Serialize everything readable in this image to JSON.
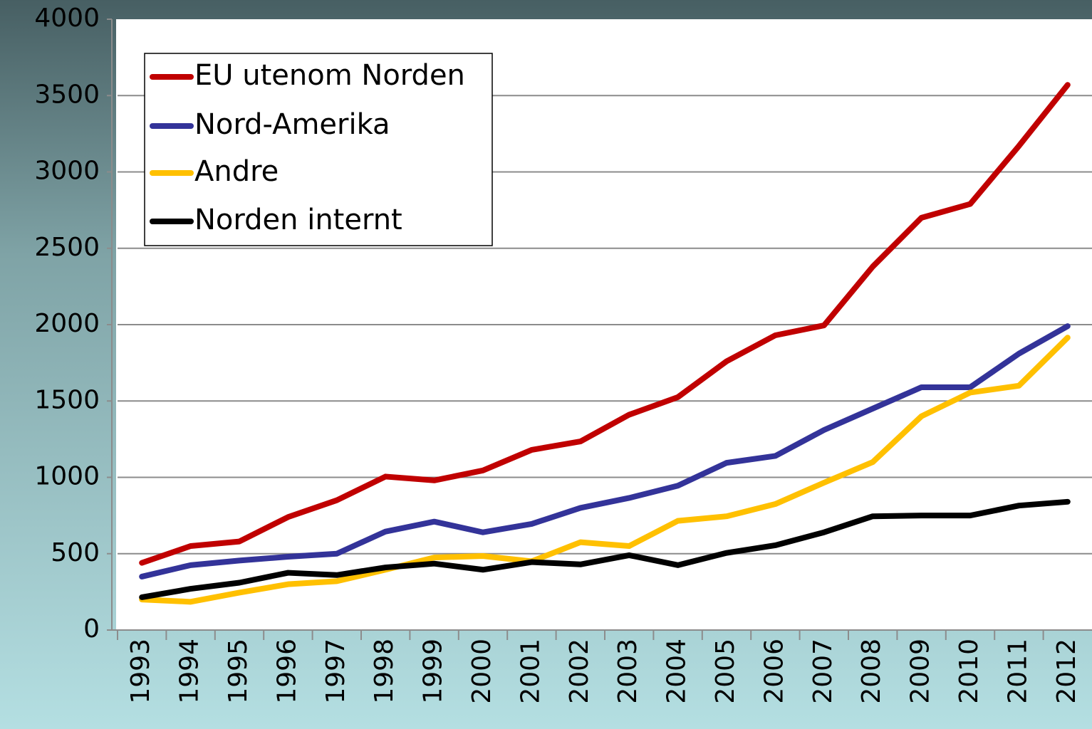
{
  "chart_data": {
    "type": "line",
    "categories": [
      "1993",
      "1994",
      "1995",
      "1996",
      "1997",
      "1998",
      "1999",
      "2000",
      "2001",
      "2002",
      "2003",
      "2004",
      "2005",
      "2006",
      "2007",
      "2008",
      "2009",
      "2010",
      "2011",
      "2012"
    ],
    "series": [
      {
        "name": "EU utenom Norden",
        "color": "#c00000",
        "values": [
          440,
          550,
          580,
          740,
          850,
          1005,
          980,
          1045,
          1180,
          1235,
          1410,
          1525,
          1760,
          1930,
          1995,
          2380,
          2700,
          2790,
          3170,
          3570
        ]
      },
      {
        "name": "Nord-Amerika",
        "color": "#333399",
        "values": [
          350,
          425,
          455,
          480,
          500,
          645,
          710,
          640,
          695,
          800,
          865,
          945,
          1095,
          1140,
          1310,
          1450,
          1590,
          1590,
          1810,
          1990
        ]
      },
      {
        "name": "Andre",
        "color": "#ffc000",
        "values": [
          200,
          185,
          245,
          300,
          320,
          395,
          475,
          485,
          450,
          575,
          550,
          715,
          745,
          825,
          965,
          1100,
          1400,
          1555,
          1600,
          1915
        ]
      },
      {
        "name": "Norden internt",
        "color": "#000000",
        "values": [
          215,
          270,
          310,
          375,
          360,
          410,
          435,
          395,
          445,
          430,
          490,
          425,
          505,
          555,
          640,
          745,
          750,
          750,
          815,
          840
        ]
      }
    ],
    "ylim": [
      0,
      4000
    ],
    "yticks": [
      0,
      500,
      1000,
      1500,
      2000,
      2500,
      3000,
      3500,
      4000
    ],
    "grid": true,
    "legend": "upper left"
  }
}
